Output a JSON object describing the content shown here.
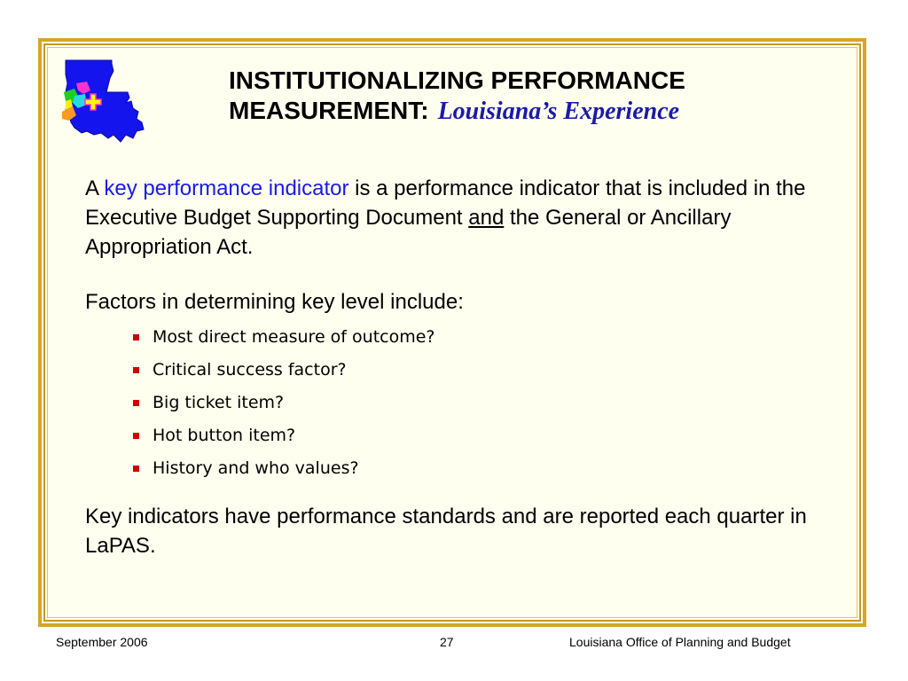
{
  "slide": {
    "title_main": "INSTITUTIONALIZING PERFORMANCE MEASUREMENT:",
    "title_sub": "Louisiana’s Experience",
    "paragraph1": {
      "prefix": "A ",
      "highlight": "key performance indicator",
      "middle": " is a performance indicator that is included in the Executive Budget Supporting Document ",
      "underlined": "and",
      "suffix": " the General or Ancillary Appropriation Act."
    },
    "paragraph2": "Factors in determining key level include:",
    "bullets": [
      "Most direct measure of outcome?",
      "Critical success factor?",
      "Big ticket item?",
      "Hot button item?",
      "History and who values?"
    ],
    "paragraph3": "Key indicators have performance standards and are reported each quarter in LaPAS."
  },
  "footer": {
    "date": "September 2006",
    "page": "27",
    "org": "Louisiana Office of Planning and Budget"
  },
  "colors": {
    "frame": "#d4a62a",
    "background": "#fffff0",
    "title_sub": "#1a1aa8",
    "highlight": "#1a1ae6",
    "bullet": "#cc0000"
  },
  "icons": {
    "logo": "louisiana-map-logo-icon",
    "bullet": "red-square-bullet-icon"
  }
}
